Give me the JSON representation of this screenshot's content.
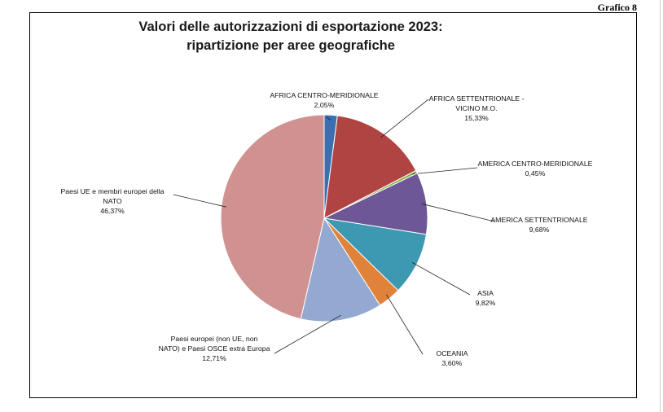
{
  "header": {
    "figure_label": "Grafico 8"
  },
  "chart_data": {
    "type": "pie",
    "title_lines": [
      "Valori delle autorizzazioni di esportazione 2023:",
      "ripartizione per aree geografiche"
    ],
    "slices": [
      {
        "label_lines": [
          "AFRICA CENTRO-MERIDIONALE"
        ],
        "value": 2.05,
        "value_text": "2,05%",
        "color": "#3a6fb0"
      },
      {
        "label_lines": [
          "AFRICA SETTENTRIONALE -",
          "VICINO M.O."
        ],
        "value": 15.33,
        "value_text": "15,33%",
        "color": "#b04442"
      },
      {
        "label_lines": [
          "AMERICA CENTRO-MERIDIONALE"
        ],
        "value": 0.45,
        "value_text": "0,45%",
        "color": "#8bb04a"
      },
      {
        "label_lines": [
          "AMERICA SETTENTRIONALE"
        ],
        "value": 9.68,
        "value_text": "9,68%",
        "color": "#6d5796"
      },
      {
        "label_lines": [
          "ASIA"
        ],
        "value": 9.82,
        "value_text": "9,82%",
        "color": "#3d98b2"
      },
      {
        "label_lines": [
          "OCEANIA"
        ],
        "value": 3.6,
        "value_text": "3,60%",
        "color": "#e0823a"
      },
      {
        "label_lines": [
          "Paesi europei (non UE, non",
          "NATO) e Paesi OSCE extra Europa"
        ],
        "value": 12.71,
        "value_text": "12,71%",
        "color": "#93a9d1"
      },
      {
        "label_lines": [
          "Paesi UE e membri europei della",
          "NATO"
        ],
        "value": 46.37,
        "value_text": "46,37%",
        "color": "#d09290"
      }
    ],
    "legend": "none"
  }
}
